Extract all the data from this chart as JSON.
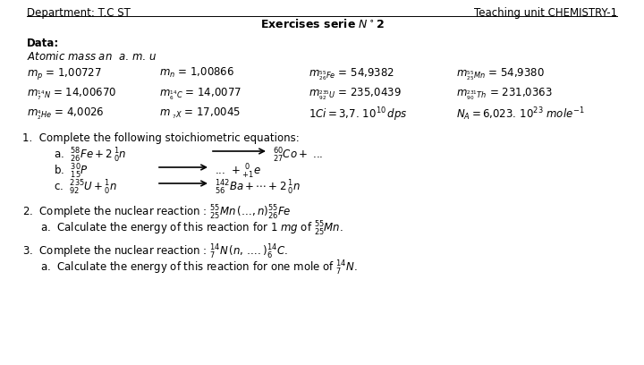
{
  "bg_color": "#ffffff",
  "header_left": "Department: T.C ST",
  "header_right": "Teaching unit CHEMISTRY-1",
  "title": "Exercises serie $\\mathbf{N^\\circ}$2",
  "data_label": "Data:",
  "atomic_mass_label": "Atomic mass an  $a.\\,m.\\,u$"
}
